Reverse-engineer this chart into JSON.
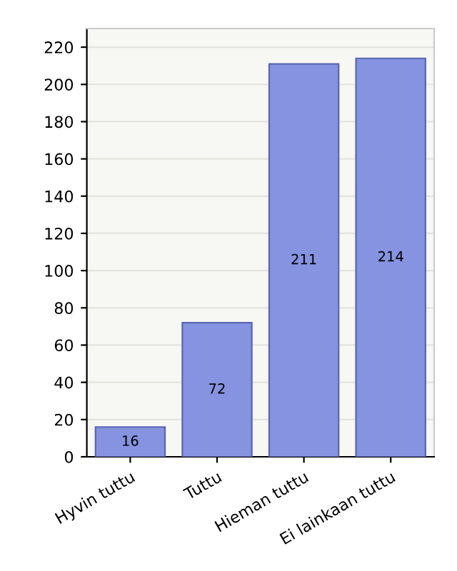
{
  "chart_data": {
    "type": "bar",
    "categories": [
      "Hyvin tuttu",
      "Tuttu",
      "Hieman tuttu",
      "Ei lainkaan tuttu"
    ],
    "values": [
      16,
      72,
      211,
      214
    ],
    "color": "#8593e0",
    "ylim": [
      0,
      230
    ],
    "yticks": [
      0,
      20,
      40,
      60,
      80,
      100,
      120,
      140,
      160,
      180,
      200,
      220
    ],
    "grid": "y",
    "data_labels": true
  }
}
